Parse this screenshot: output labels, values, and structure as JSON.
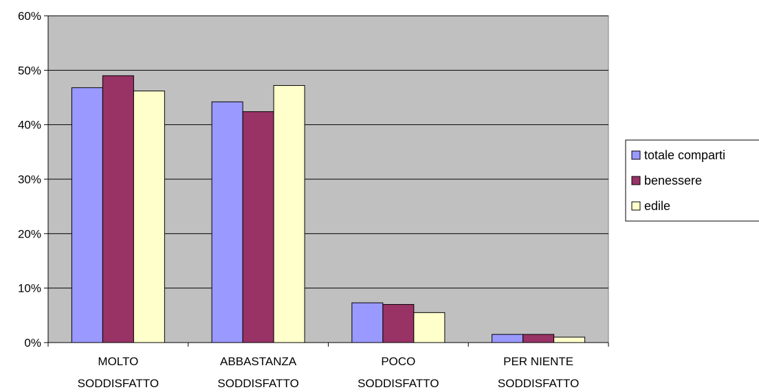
{
  "chart_data": {
    "type": "bar",
    "title": "",
    "xlabel": "",
    "ylabel": "",
    "ylim": [
      0,
      60
    ],
    "y_ticks": [
      "0%",
      "10%",
      "20%",
      "30%",
      "40%",
      "50%",
      "60%"
    ],
    "y_tick_values": [
      0,
      10,
      20,
      30,
      40,
      50,
      60
    ],
    "grid": true,
    "legend_position": "right",
    "plot_background": "#c0c0c0",
    "categories": [
      [
        "MOLTO",
        "SODDISFATTO"
      ],
      [
        "ABBASTANZA",
        "SODDISFATTO"
      ],
      [
        "POCO",
        "SODDISFATTO"
      ],
      [
        "PER NIENTE",
        "SODDISFATTO"
      ]
    ],
    "series": [
      {
        "name": "totale comparti",
        "color": "#9999ff",
        "values": [
          46.8,
          44.2,
          7.3,
          1.5
        ]
      },
      {
        "name": "benessere",
        "color": "#993366",
        "values": [
          49.0,
          42.4,
          7.0,
          1.5
        ]
      },
      {
        "name": "edile",
        "color": "#ffffcc",
        "values": [
          46.2,
          47.2,
          5.5,
          1.0
        ]
      }
    ]
  }
}
